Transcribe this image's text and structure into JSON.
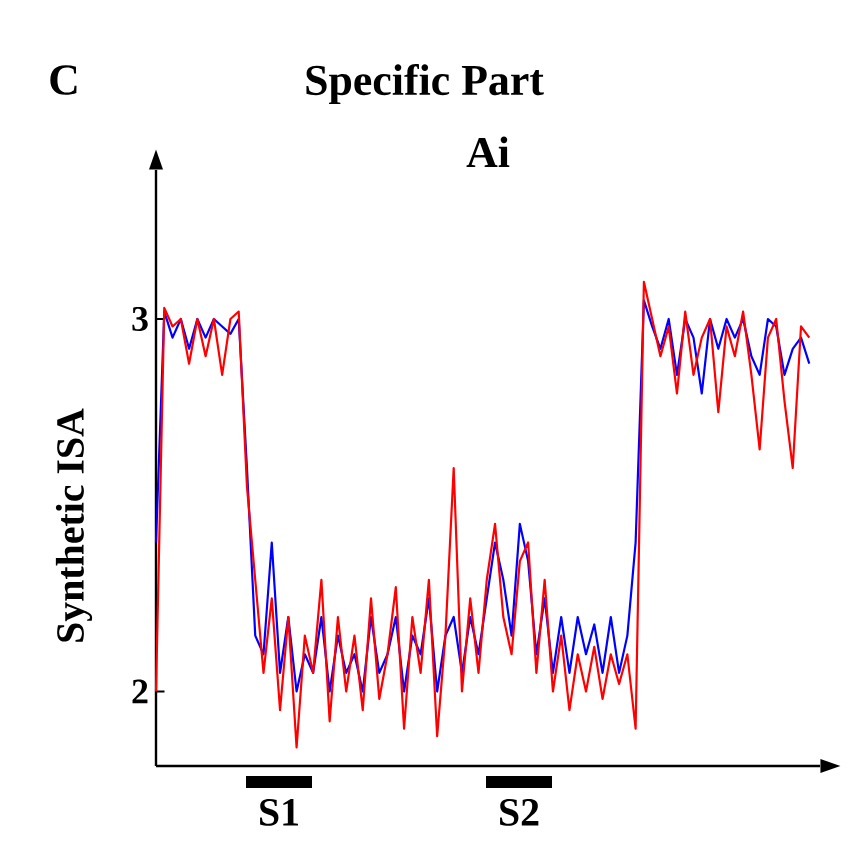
{
  "chart_data": {
    "type": "line",
    "title": "Specific Part",
    "subtitle": "Ai",
    "ylabel": "Synthetic ISA",
    "annotations": [
      "C",
      "S1",
      "S2"
    ],
    "categories": [
      null,
      null,
      null,
      null,
      null,
      null,
      null,
      null,
      null,
      null,
      null,
      null,
      null,
      null,
      null,
      null,
      null,
      null,
      null,
      null,
      null,
      null,
      null,
      null,
      null,
      null,
      null,
      null,
      null,
      null,
      null,
      null,
      null,
      null,
      null,
      null,
      null,
      null,
      null,
      null,
      null,
      null,
      null,
      null,
      null,
      null,
      null,
      null,
      null,
      null,
      null,
      null,
      null,
      null,
      null,
      null,
      null,
      null,
      null,
      null,
      null,
      null,
      null,
      null,
      null,
      null,
      null,
      null,
      null,
      null,
      null,
      null,
      null,
      null,
      null,
      null,
      null,
      null,
      null,
      null
    ],
    "series": [
      {
        "color": "#0000ff",
        "values": [
          2.4,
          3.02,
          2.95,
          3.0,
          2.92,
          3.0,
          2.95,
          3.0,
          2.98,
          2.96,
          3.0,
          2.6,
          2.15,
          2.1,
          2.4,
          2.05,
          2.2,
          2.0,
          2.1,
          2.05,
          2.2,
          2.0,
          2.15,
          2.05,
          2.1,
          2.0,
          2.2,
          2.05,
          2.1,
          2.2,
          2.0,
          2.15,
          2.1,
          2.25,
          2.0,
          2.15,
          2.2,
          2.05,
          2.2,
          2.1,
          2.25,
          2.4,
          2.3,
          2.15,
          2.45,
          2.35,
          2.1,
          2.25,
          2.05,
          2.2,
          2.05,
          2.2,
          2.1,
          2.18,
          2.05,
          2.2,
          2.05,
          2.15,
          2.4,
          3.05,
          2.98,
          2.92,
          3.0,
          2.85,
          3.0,
          2.95,
          2.8,
          3.0,
          2.92,
          3.0,
          2.95,
          3.0,
          2.9,
          2.85,
          3.0,
          2.98,
          2.85,
          2.92,
          2.95,
          2.88
        ]
      },
      {
        "color": "#ff0000",
        "values": [
          2.0,
          3.03,
          2.98,
          3.0,
          2.88,
          3.0,
          2.9,
          3.0,
          2.85,
          3.0,
          3.02,
          2.55,
          2.3,
          2.05,
          2.25,
          1.95,
          2.2,
          1.85,
          2.15,
          2.05,
          2.3,
          1.92,
          2.2,
          2.0,
          2.15,
          1.95,
          2.25,
          1.98,
          2.1,
          2.28,
          1.9,
          2.2,
          2.05,
          2.3,
          1.88,
          2.15,
          2.6,
          2.0,
          2.25,
          2.05,
          2.3,
          2.45,
          2.2,
          2.1,
          2.35,
          2.4,
          2.05,
          2.3,
          2.0,
          2.15,
          1.95,
          2.1,
          2.0,
          2.12,
          1.98,
          2.1,
          2.02,
          2.1,
          1.9,
          3.1,
          3.0,
          2.9,
          2.98,
          2.8,
          3.02,
          2.85,
          2.95,
          3.0,
          2.75,
          2.98,
          2.9,
          3.02,
          2.85,
          2.65,
          2.95,
          3.0,
          2.78,
          2.6,
          2.98,
          2.95
        ]
      }
    ],
    "ylim": [
      1.8,
      3.4
    ],
    "yticks": [
      2,
      3
    ],
    "tick_labels": "y"
  }
}
